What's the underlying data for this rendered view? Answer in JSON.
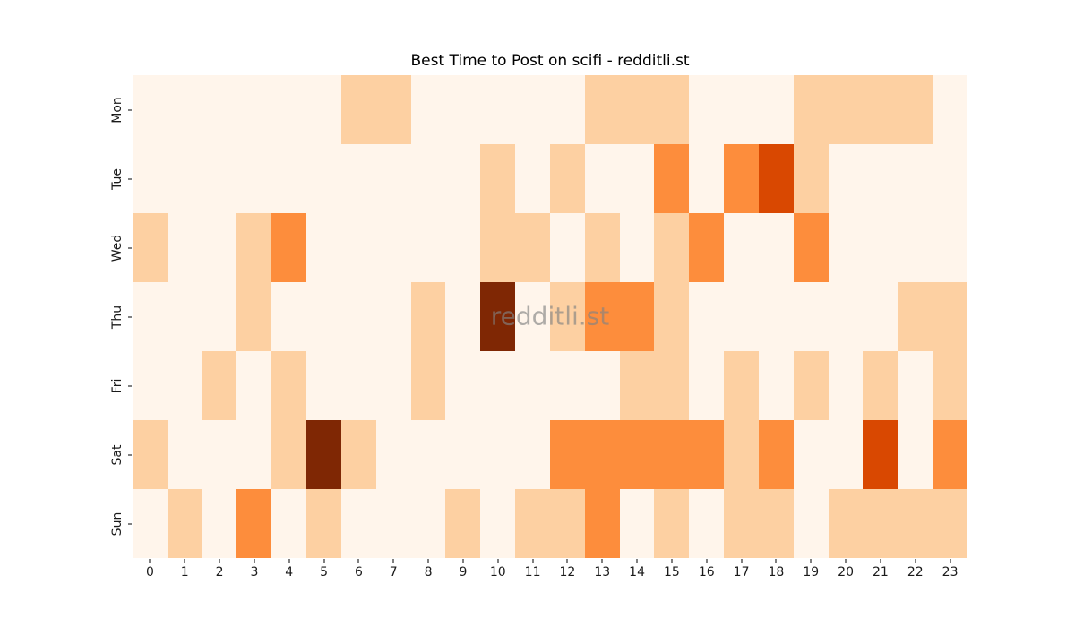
{
  "chart_data": {
    "type": "heatmap",
    "title": "Best Time to Post on scifi - redditli.st",
    "xlabel": "",
    "ylabel": "",
    "x_labels": [
      "0",
      "1",
      "2",
      "3",
      "4",
      "5",
      "6",
      "7",
      "8",
      "9",
      "10",
      "11",
      "12",
      "13",
      "14",
      "15",
      "16",
      "17",
      "18",
      "19",
      "20",
      "21",
      "22",
      "23"
    ],
    "y_labels": [
      "Mon",
      "Tue",
      "Wed",
      "Thu",
      "Fri",
      "Sat",
      "Sun"
    ],
    "values": [
      [
        0,
        0,
        0,
        0,
        0,
        0,
        1,
        1,
        0,
        0,
        0,
        0,
        0,
        1,
        1,
        1,
        0,
        0,
        0,
        1,
        1,
        1,
        1,
        0
      ],
      [
        0,
        0,
        0,
        0,
        0,
        0,
        0,
        0,
        0,
        0,
        1,
        0,
        1,
        0,
        0,
        2,
        0,
        2,
        3,
        1,
        0,
        0,
        0,
        0
      ],
      [
        1,
        0,
        0,
        1,
        2,
        0,
        0,
        0,
        0,
        0,
        1,
        1,
        0,
        1,
        0,
        1,
        2,
        0,
        0,
        2,
        0,
        0,
        0,
        0
      ],
      [
        0,
        0,
        0,
        1,
        0,
        0,
        0,
        0,
        1,
        0,
        4,
        0,
        1,
        2,
        2,
        1,
        0,
        0,
        0,
        0,
        0,
        0,
        1,
        1
      ],
      [
        0,
        0,
        1,
        0,
        1,
        0,
        0,
        0,
        1,
        0,
        0,
        0,
        0,
        0,
        1,
        1,
        0,
        1,
        0,
        1,
        0,
        1,
        0,
        1
      ],
      [
        1,
        0,
        0,
        0,
        1,
        4,
        1,
        0,
        0,
        0,
        0,
        0,
        2,
        2,
        2,
        2,
        2,
        1,
        2,
        0,
        0,
        3,
        0,
        2
      ],
      [
        0,
        1,
        0,
        2,
        0,
        1,
        0,
        0,
        0,
        1,
        0,
        1,
        1,
        2,
        0,
        1,
        0,
        1,
        1,
        0,
        1,
        1,
        1,
        1
      ]
    ],
    "value_range": [
      0,
      4
    ],
    "palette": [
      "#fff5eb",
      "#fdd0a2",
      "#fd8d3c",
      "#d94801",
      "#7f2704"
    ],
    "colormap_name": "Oranges",
    "legend_position": "none",
    "grid": false
  },
  "watermark": {
    "text": "redditli.st"
  }
}
